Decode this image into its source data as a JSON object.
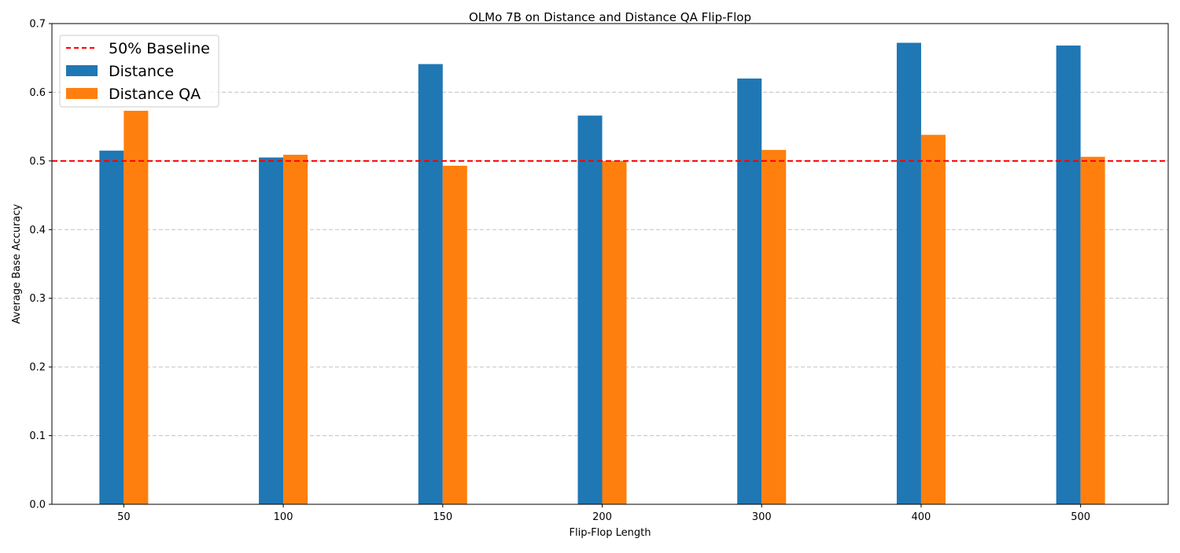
{
  "chart_data": {
    "type": "bar",
    "title": "OLMo 7B on Distance and Distance QA Flip-Flop",
    "xlabel": "Flip-Flop Length",
    "ylabel": "Average Base Accuracy",
    "categories": [
      "50",
      "100",
      "150",
      "200",
      "300",
      "400",
      "500"
    ],
    "ylim": [
      0,
      0.7
    ],
    "yticks": [
      "0.0",
      "0.1",
      "0.2",
      "0.3",
      "0.4",
      "0.5",
      "0.6",
      "0.7"
    ],
    "grid": "horizontal-dashed",
    "legend_position": "top-left",
    "series": [
      {
        "name": "Distance",
        "color": "#1f77b4",
        "values": [
          0.515,
          0.505,
          0.641,
          0.566,
          0.62,
          0.672,
          0.668
        ]
      },
      {
        "name": "Distance QA",
        "color": "#ff7f0e",
        "values": [
          0.573,
          0.509,
          0.493,
          0.5,
          0.516,
          0.538,
          0.506
        ]
      }
    ],
    "reference_lines": [
      {
        "name": "50% Baseline",
        "value": 0.5,
        "color": "#ff0000",
        "style": "dashed"
      }
    ]
  }
}
